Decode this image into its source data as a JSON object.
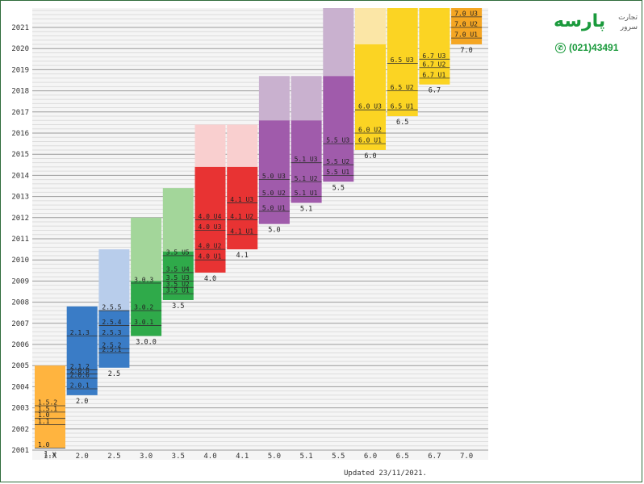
{
  "brand": {
    "name": "پارسه",
    "subtitle_line1": "تجارت",
    "subtitle_line2": "سرور",
    "phone": "(021)43491"
  },
  "footer": {
    "updated": "Updated 23/11/2021."
  },
  "chart_data": {
    "type": "timeline",
    "ylim": [
      2001,
      2022
    ],
    "y_ticks": [
      2001,
      2002,
      2003,
      2004,
      2005,
      2006,
      2007,
      2008,
      2009,
      2010,
      2011,
      2012,
      2013,
      2014,
      2015,
      2016,
      2017,
      2018,
      2019,
      2020,
      2021
    ],
    "versions": [
      {
        "label": "1.x",
        "start": 2001.1,
        "end": 2005.0,
        "ext_end": null,
        "color": "#ffb43f",
        "ext_color": null,
        "sub": [
          {
            "label": "1.0",
            "y": 2001.1
          },
          {
            "label": "1.1",
            "y": 2002.2
          },
          {
            "label": "1.0",
            "y": 2002.5
          },
          {
            "label": "1.5.1",
            "y": 2002.8
          },
          {
            "label": "1.5.2",
            "y": 2003.1
          }
        ]
      },
      {
        "label": "2.0",
        "start": 2003.6,
        "end": 2007.8,
        "ext_end": null,
        "color": "#3a7cc6",
        "ext_color": null,
        "sub": [
          {
            "label": "2.0.1",
            "y": 2003.9
          },
          {
            "label": "2.0.6",
            "y": 2004.4
          },
          {
            "label": "2.0.8",
            "y": 2004.6
          },
          {
            "label": "2.1.2",
            "y": 2004.8
          },
          {
            "label": "2.1.3",
            "y": 2006.4
          }
        ]
      },
      {
        "label": "2.5",
        "start": 2004.9,
        "end": 2007.6,
        "ext_end": 2010.5,
        "color": "#3a7cc6",
        "ext_color": "#b8cdeb",
        "sub": [
          {
            "label": "2.5.1",
            "y": 2005.6
          },
          {
            "label": "2.5.2",
            "y": 2005.8
          },
          {
            "label": "2.5.3",
            "y": 2006.4
          },
          {
            "label": "2.5.4",
            "y": 2006.9
          },
          {
            "label": "2.5.5",
            "y": 2007.6
          }
        ]
      },
      {
        "label": "3.0.0",
        "start": 2006.4,
        "end": 2009.0,
        "ext_end": 2012.0,
        "color": "#2faa4a",
        "ext_color": "#a3d69a",
        "sub": [
          {
            "label": "3.0.1",
            "y": 2006.9
          },
          {
            "label": "3.0.2",
            "y": 2007.6
          },
          {
            "label": "3.0.3",
            "y": 2008.9
          }
        ]
      },
      {
        "label": "3.5",
        "start": 2008.1,
        "end": 2010.4,
        "ext_end": 2013.4,
        "color": "#2faa4a",
        "ext_color": "#a3d69a",
        "sub": [
          {
            "label": "3.5 U1",
            "y": 2008.4
          },
          {
            "label": "3.5 U2",
            "y": 2008.7
          },
          {
            "label": "3.5 U3",
            "y": 2009.0
          },
          {
            "label": "3.5 U4",
            "y": 2009.4
          },
          {
            "label": "3.5 U5",
            "y": 2010.2
          }
        ]
      },
      {
        "label": "4.0",
        "start": 2009.4,
        "end": 2014.4,
        "ext_end": 2016.4,
        "color": "#e83333",
        "ext_color": "#f9cfcf",
        "sub": [
          {
            "label": "4.0 U1",
            "y": 2010.0
          },
          {
            "label": "4.0 U2",
            "y": 2010.5
          },
          {
            "label": "4.0 U3",
            "y": 2011.4
          },
          {
            "label": "4.0 U4",
            "y": 2011.9
          }
        ]
      },
      {
        "label": "4.1",
        "start": 2010.5,
        "end": 2014.4,
        "ext_end": 2016.4,
        "color": "#e83333",
        "ext_color": "#f9cfcf",
        "sub": [
          {
            "label": "4.1 U1",
            "y": 2011.2
          },
          {
            "label": "4.1 U2",
            "y": 2011.9
          },
          {
            "label": "4.1 U3",
            "y": 2012.7
          }
        ]
      },
      {
        "label": "5.0",
        "start": 2011.7,
        "end": 2016.6,
        "ext_end": 2018.7,
        "color": "#a05bab",
        "ext_color": "#c9b1cf",
        "sub": [
          {
            "label": "5.0 U1",
            "y": 2012.3
          },
          {
            "label": "5.0 U2",
            "y": 2013.0
          },
          {
            "label": "5.0 U3",
            "y": 2013.8
          }
        ]
      },
      {
        "label": "5.1",
        "start": 2012.7,
        "end": 2016.6,
        "ext_end": 2018.7,
        "color": "#a05bab",
        "ext_color": "#c9b1cf",
        "sub": [
          {
            "label": "5.1 U1",
            "y": 2013.0
          },
          {
            "label": "5.1 U2",
            "y": 2013.7
          },
          {
            "label": "5.1 U3",
            "y": 2014.6
          }
        ]
      },
      {
        "label": "5.5",
        "start": 2013.7,
        "end": 2018.7,
        "ext_end": 2022.0,
        "color": "#a05bab",
        "ext_color": "#c9b1cf",
        "sub": [
          {
            "label": "5.5 U1",
            "y": 2014.0
          },
          {
            "label": "5.5 U2",
            "y": 2014.5
          },
          {
            "label": "5.5 U3",
            "y": 2015.5
          }
        ]
      },
      {
        "label": "6.0",
        "start": 2015.2,
        "end": 2020.2,
        "ext_end": 2022.0,
        "color": "#fbd423",
        "ext_color": "#fbe6a6",
        "sub": [
          {
            "label": "6.0 U1",
            "y": 2015.5
          },
          {
            "label": "6.0 U2",
            "y": 2016.0
          },
          {
            "label": "6.0 U3",
            "y": 2017.1
          }
        ]
      },
      {
        "label": "6.5",
        "start": 2016.8,
        "end": 2022.0,
        "ext_end": null,
        "color": "#fbd423",
        "ext_color": null,
        "sub": [
          {
            "label": "6.5 U1",
            "y": 2017.1
          },
          {
            "label": "6.5 U2",
            "y": 2018.0
          },
          {
            "label": "6.5 U3",
            "y": 2019.3
          }
        ]
      },
      {
        "label": "6.7",
        "start": 2018.3,
        "end": 2022.0,
        "ext_end": null,
        "color": "#fbd423",
        "ext_color": null,
        "sub": [
          {
            "label": "6.7 U1",
            "y": 2018.6
          },
          {
            "label": "6.7 U2",
            "y": 2019.1
          },
          {
            "label": "6.7 U3",
            "y": 2019.5
          }
        ]
      },
      {
        "label": "7.0",
        "start": 2020.2,
        "end": 2022.0,
        "ext_end": null,
        "color": "#f5a623",
        "ext_color": null,
        "sub": [
          {
            "label": "7.0 U1",
            "y": 2020.5
          },
          {
            "label": "7.0 U2",
            "y": 2021.0
          },
          {
            "label": "7.0 U3",
            "y": 2021.5
          }
        ]
      }
    ],
    "x_labels": [
      "1.X",
      "2.0",
      "2.5",
      "3.0",
      "3.5",
      "4.0",
      "4.1",
      "5.0",
      "5.1",
      "5.5",
      "6.0",
      "6.5",
      "6.7",
      "7.0"
    ],
    "grid": true
  }
}
